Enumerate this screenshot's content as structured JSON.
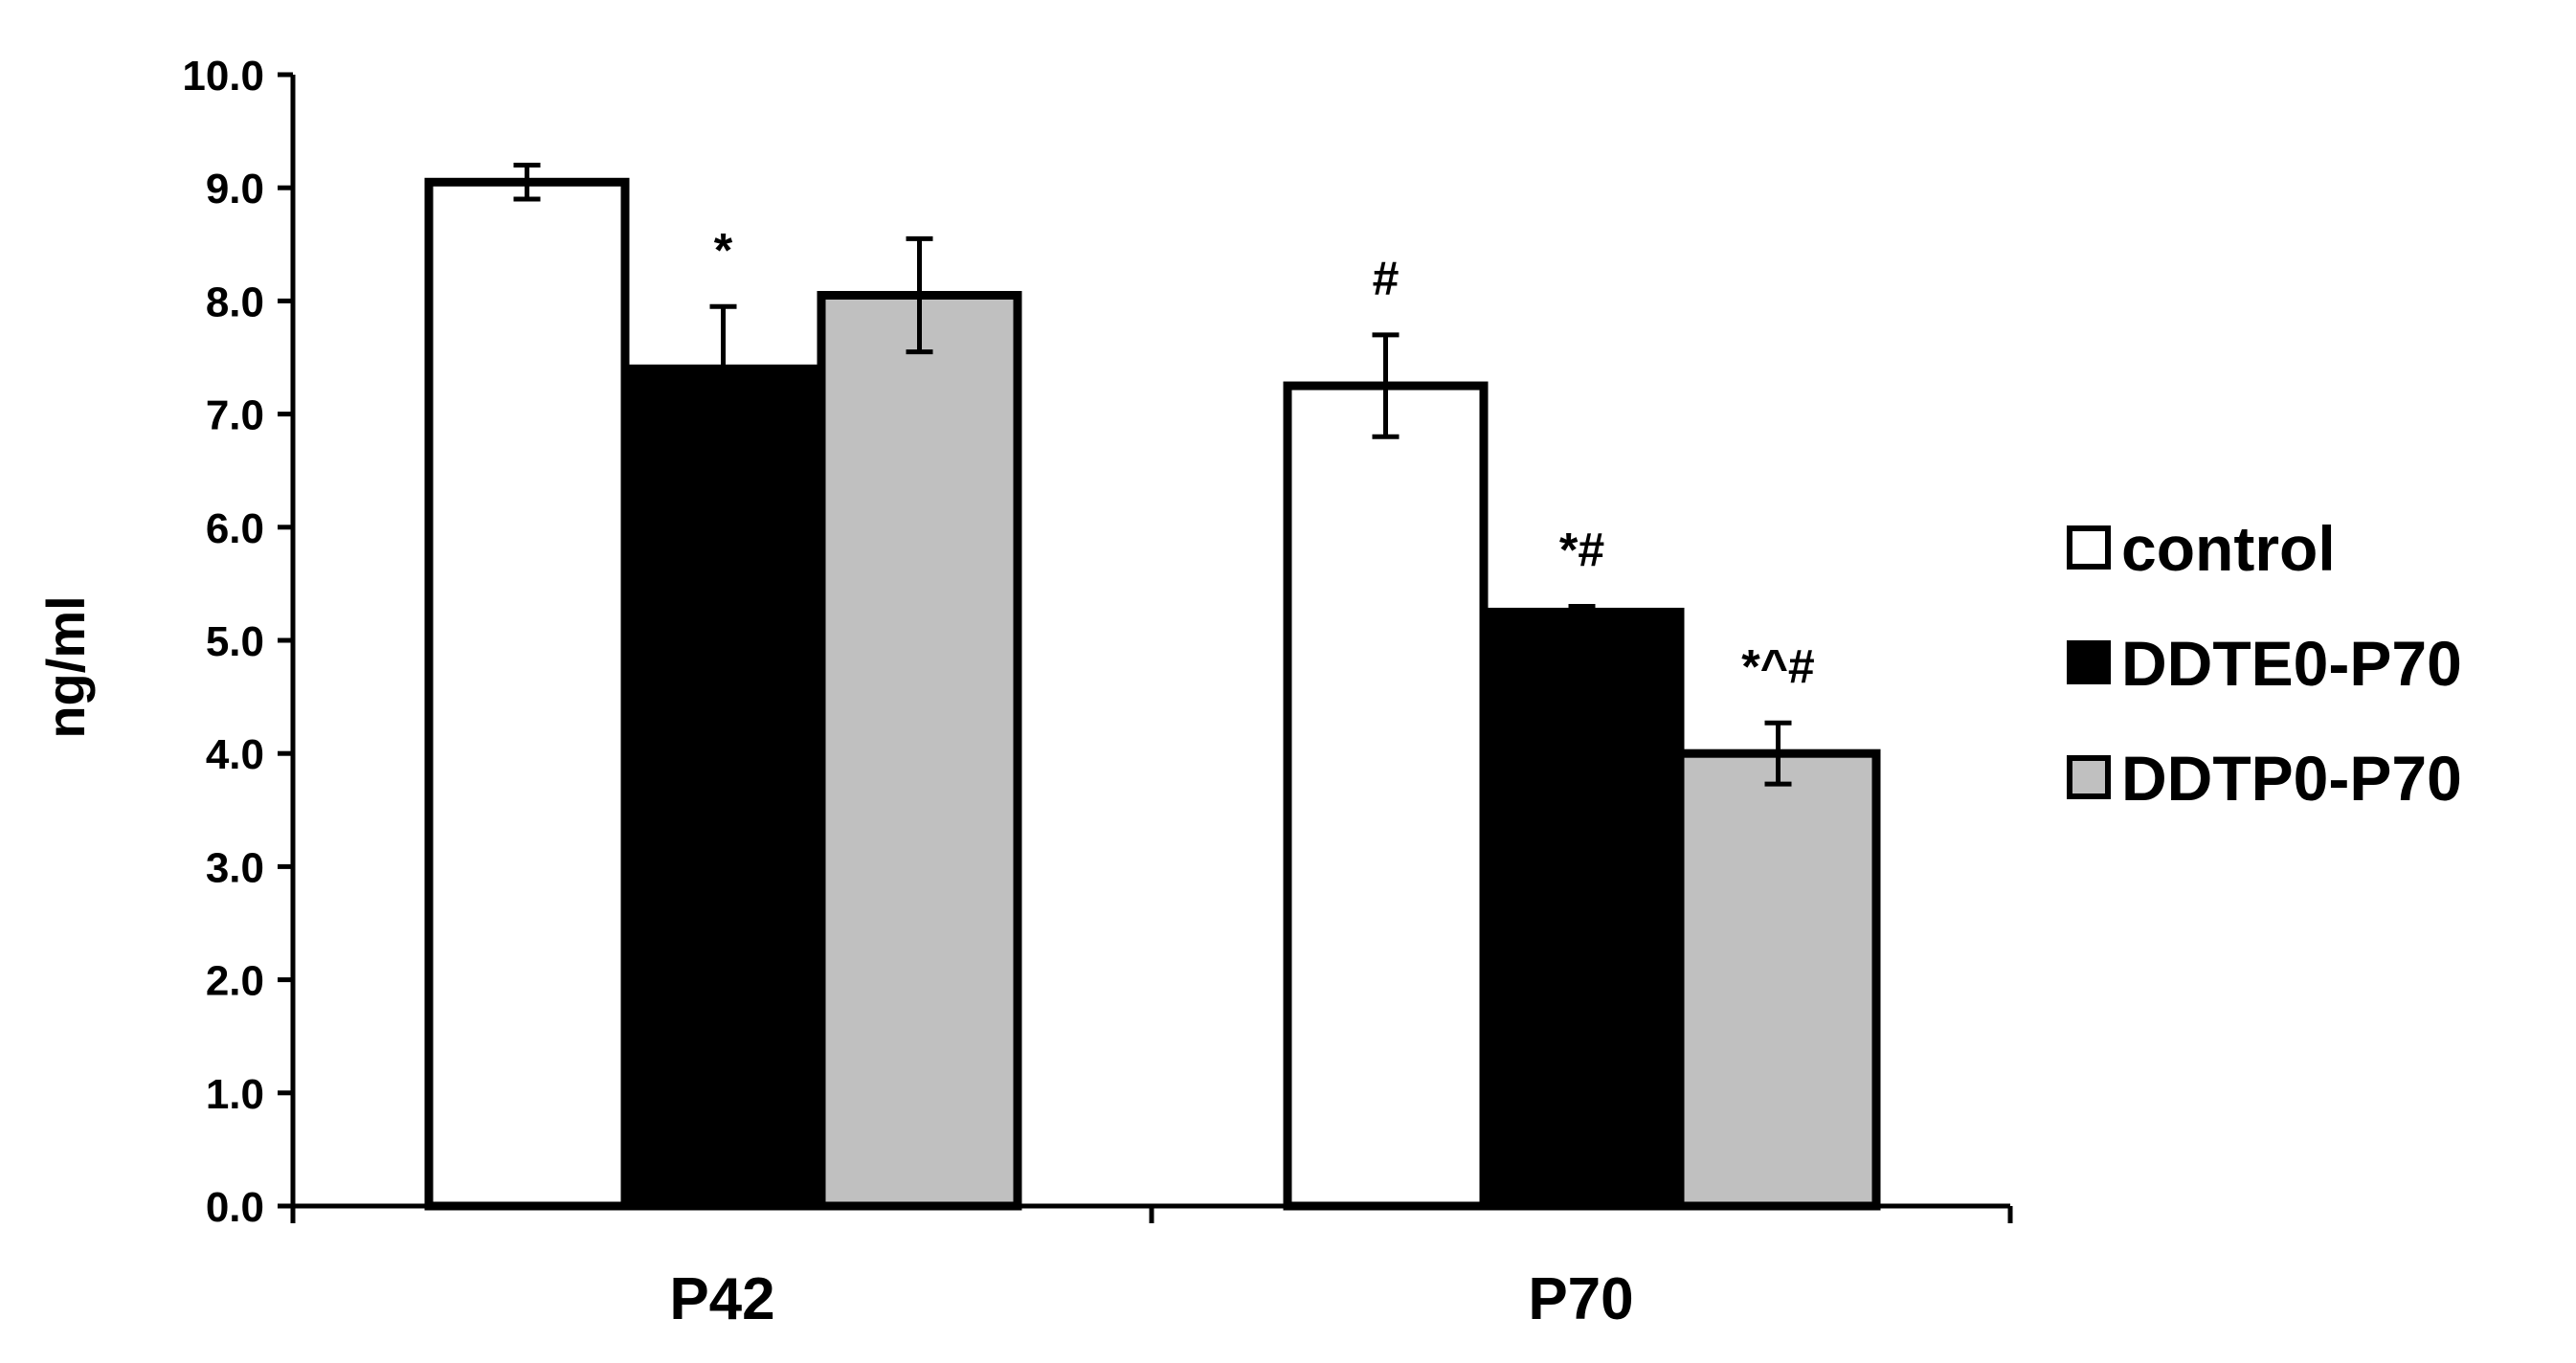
{
  "chart_data": {
    "type": "bar",
    "title": "",
    "xlabel": "",
    "ylabel": "ng/ml",
    "ylim": [
      0,
      10
    ],
    "ytick_step": 1,
    "ytick_decimals": 1,
    "grid": false,
    "legend_position": "right",
    "categories": [
      "P42",
      "P70"
    ],
    "series": [
      {
        "name": "control",
        "color": "#ffffff",
        "values": [
          9.05,
          7.25
        ],
        "errors": [
          0.15,
          0.45
        ]
      },
      {
        "name": "DDTE0-P70",
        "color": "#000000",
        "values": [
          7.4,
          5.25
        ],
        "errors": [
          0.55,
          0.05
        ]
      },
      {
        "name": "DDTP0-P70",
        "color": "#c0c0c0",
        "values": [
          8.05,
          4.0
        ],
        "errors": [
          0.5,
          0.27
        ]
      }
    ],
    "annotations": [
      {
        "category": "P42",
        "series": "DDTE0-P70",
        "text": "*"
      },
      {
        "category": "P70",
        "series": "control",
        "text": "#"
      },
      {
        "category": "P70",
        "series": "DDTE0-P70",
        "text": "*#"
      },
      {
        "category": "P70",
        "series": "DDTP0-P70",
        "text": "*^#"
      }
    ]
  }
}
